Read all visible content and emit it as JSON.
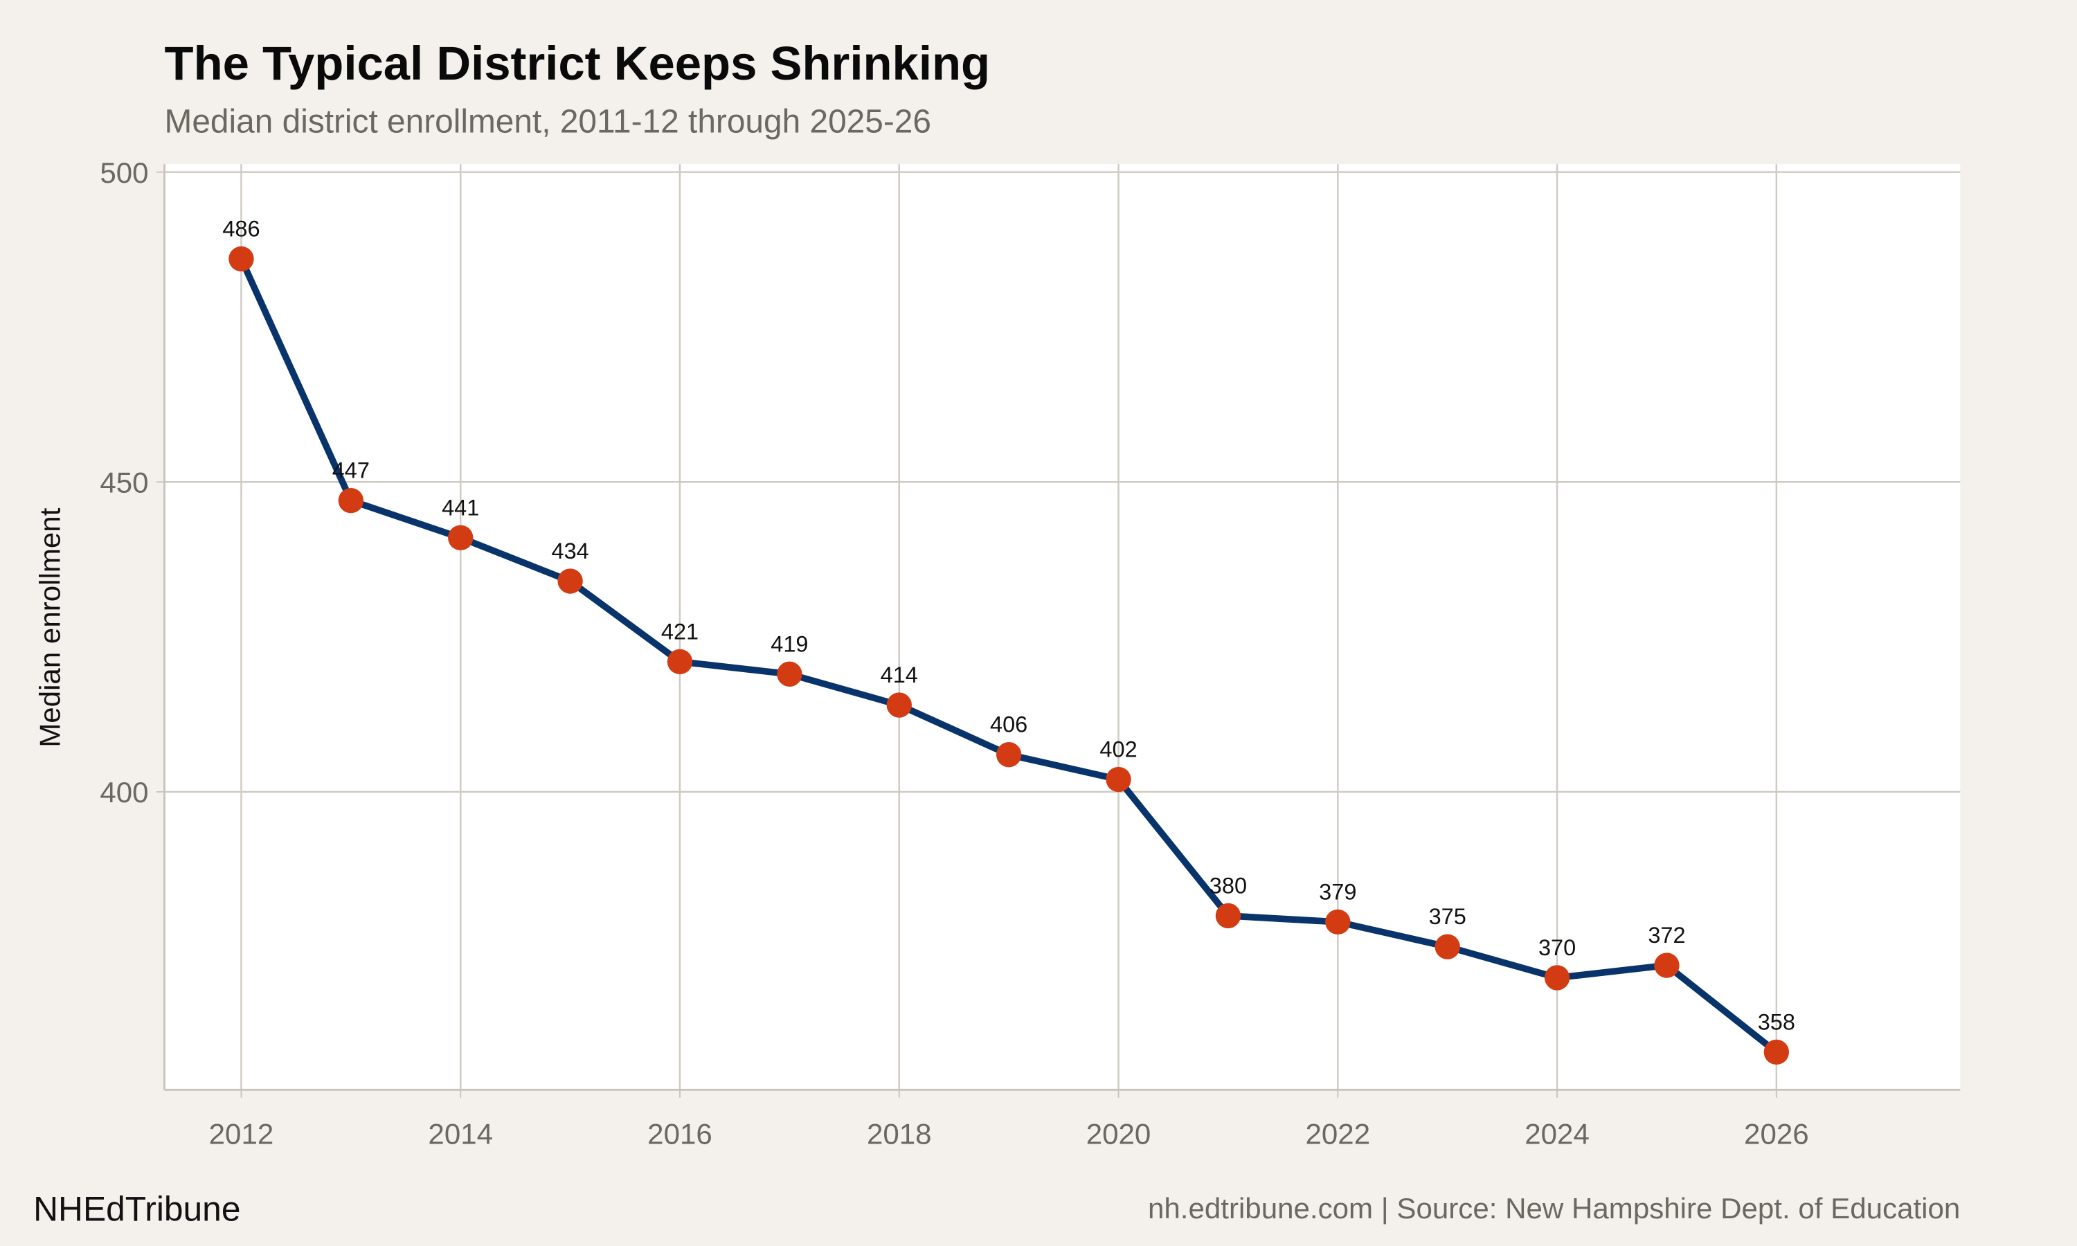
{
  "chart_data": {
    "type": "line",
    "title": "The Typical District Keeps Shrinking",
    "subtitle": "Median district enrollment, 2011-12 through 2025-26",
    "xlabel": "",
    "ylabel": "Median enrollment",
    "x": [
      2012,
      2013,
      2014,
      2015,
      2016,
      2017,
      2018,
      2019,
      2020,
      2021,
      2022,
      2023,
      2024,
      2025,
      2026
    ],
    "values": [
      486,
      447,
      441,
      434,
      421,
      419,
      414,
      406,
      402,
      380,
      379,
      375,
      370,
      372,
      358
    ],
    "data_labels": [
      "486",
      "447",
      "441",
      "434",
      "421",
      "419",
      "414",
      "406",
      "402",
      "380",
      "379",
      "375",
      "370",
      "372",
      "358"
    ],
    "x_ticks": [
      "2012",
      "2014",
      "2016",
      "2018",
      "2020",
      "2022",
      "2024",
      "2026"
    ],
    "y_ticks": [
      "400",
      "450",
      "500"
    ],
    "xlim": [
      2011.3,
      2027.7
    ],
    "ylim": [
      352,
      501
    ],
    "grid": true,
    "line_color": "#08346b",
    "point_color": "#d33c12"
  },
  "footer": {
    "brand": "NHEdTribune",
    "source": "nh.edtribune.com | Source: New Hampshire Dept. of Education"
  }
}
